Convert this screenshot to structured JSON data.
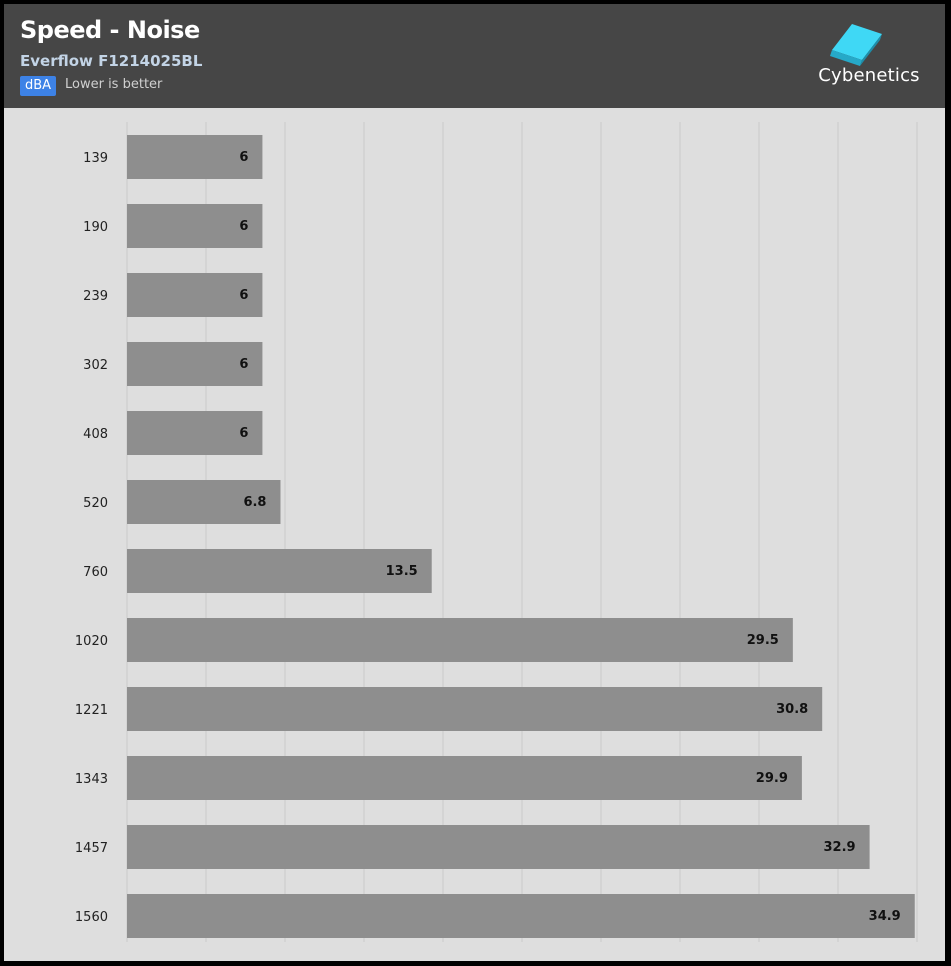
{
  "header": {
    "title": "Speed - Noise",
    "subtitle": "Everflow F1214025BL",
    "unit": "dBA",
    "hint": "Lower is better",
    "logo_text": "Cybenetics",
    "logo_icon": "cybenetics-cube-icon"
  },
  "colors": {
    "header_bg": "#464646",
    "plot_bg": "#dedede",
    "bar": "#8e8e8e",
    "badge": "#3d82e6",
    "logo_accent": "#3fd8f5"
  },
  "chart_data": {
    "type": "bar",
    "orientation": "horizontal",
    "title": "Speed - Noise",
    "subtitle": "Everflow F1214025BL",
    "unit": "dBA",
    "categories": [
      "139",
      "190",
      "239",
      "302",
      "408",
      "520",
      "760",
      "1020",
      "1221",
      "1343",
      "1457",
      "1560"
    ],
    "values": [
      6,
      6,
      6,
      6,
      6,
      6.8,
      13.5,
      29.5,
      30.8,
      29.9,
      32.9,
      34.9
    ],
    "xlim": [
      0,
      35
    ],
    "grid": true
  }
}
